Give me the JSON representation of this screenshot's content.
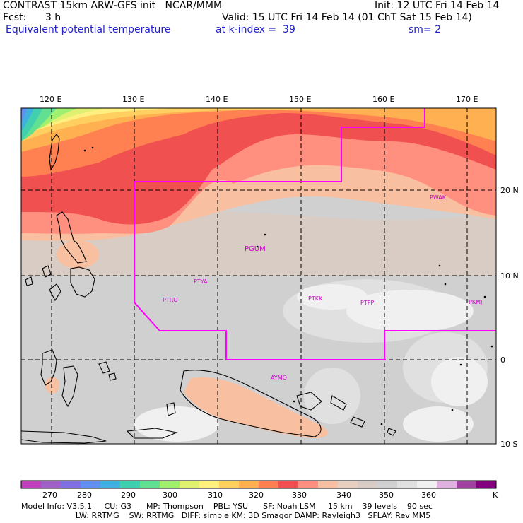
{
  "header": {
    "line1_left": "CONTRAST 15km ARW-GFS init   NCAR/MMM",
    "line1_right": "Init: 12 UTC Fri 14 Feb 14",
    "line2_left": "Fcst:      3 h",
    "line2_right": "Valid: 15 UTC Fri 14 Feb 14 (01 ChT Sat 15 Feb 14)",
    "line3_field": "Equivalent potential temperature",
    "line3_level": "at k-index =  39",
    "line3_smooth": "sm= 2"
  },
  "map": {
    "longitude_labels": [
      "120 E",
      "130 E",
      "140 E",
      "150 E",
      "160 E",
      "170 E"
    ],
    "latitude_labels": [
      "20 N",
      "10 N",
      "0",
      "10 S"
    ],
    "stations": [
      "PWAK",
      "PGUM",
      "PTYA",
      "PTRO",
      "PTKK",
      "PTPP",
      "PKMJ",
      "AYMO"
    ]
  },
  "colorbar": {
    "colors": [
      "#c040c0",
      "#a060c8",
      "#8070e0",
      "#6090f0",
      "#40b0e0",
      "#40d0b0",
      "#60e090",
      "#a0f070",
      "#e0f070",
      "#fff080",
      "#ffd060",
      "#ffb050",
      "#ff8050",
      "#f05050",
      "#ff9080",
      "#f8c0a0",
      "#e8d0c0",
      "#d8ccc4",
      "#d0d0d0",
      "#e0e0e0",
      "#f0f0f0",
      "#e0b0e0",
      "#a040a0",
      "#800080"
    ],
    "labels": [
      "270",
      "280",
      "290",
      "300",
      "310",
      "320",
      "330",
      "340",
      "350",
      "360"
    ],
    "unit": "K"
  },
  "model_info": {
    "line1": "Model Info: V3.5.1     CU: G3      MP: Thompson    PBL: YSU      SF: Noah LSM     15 km    39 levels    90 sec",
    "line2": "                      LW: RRTMG    SW: RRTMG   DIFF: simple KM: 3D Smagor DAMP: Rayleigh3   SFLAY: Rev MM5"
  }
}
